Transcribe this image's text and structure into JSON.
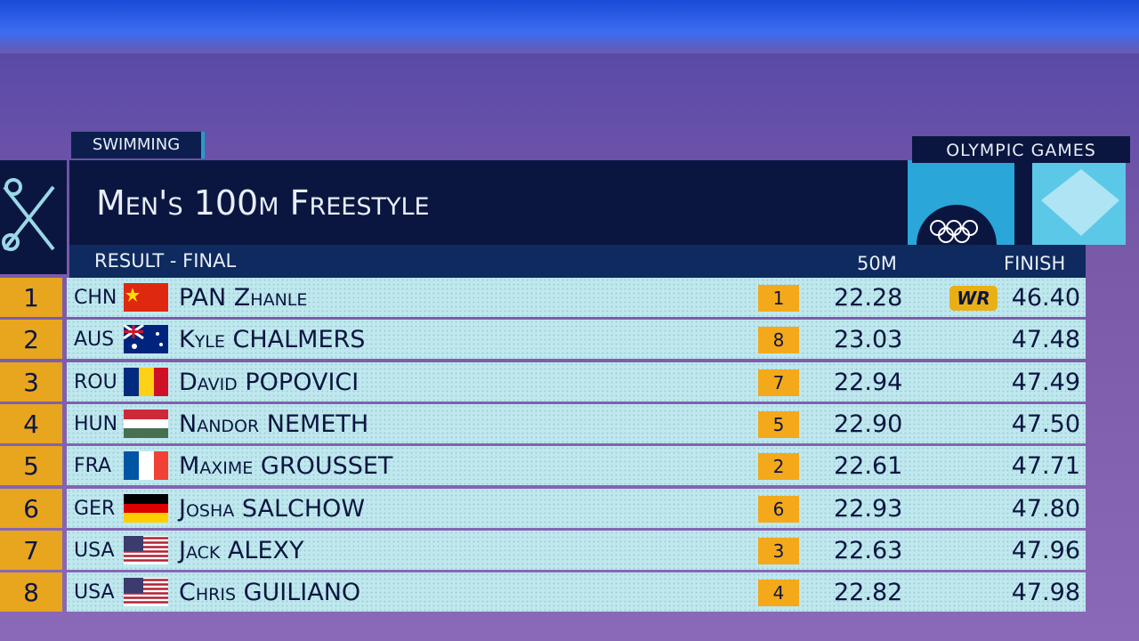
{
  "header": {
    "sport": "SWIMMING",
    "event": "Men's 100m Freestyle",
    "brand": "OLYMPIC GAMES",
    "phase": "RESULT - FINAL",
    "col_split": "50M",
    "col_finish": "FINISH"
  },
  "table": {
    "rows": [
      {
        "rank": "1",
        "country": "CHN",
        "name": "PAN Zhanle",
        "split_rank": "1",
        "split": "22.28",
        "record": "WR",
        "finish": "46.40"
      },
      {
        "rank": "2",
        "country": "AUS",
        "name": "Kyle CHALMERS",
        "split_rank": "8",
        "split": "23.03",
        "finish": "47.48"
      },
      {
        "rank": "3",
        "country": "ROU",
        "name": "David POPOVICI",
        "split_rank": "7",
        "split": "22.94",
        "finish": "47.49"
      },
      {
        "rank": "4",
        "country": "HUN",
        "name": "Nandor NEMETH",
        "split_rank": "5",
        "split": "22.90",
        "finish": "47.50"
      },
      {
        "rank": "5",
        "country": "FRA",
        "name": "Maxime GROUSSET",
        "split_rank": "2",
        "split": "22.61",
        "finish": "47.71"
      },
      {
        "rank": "6",
        "country": "GER",
        "name": "Josha SALCHOW",
        "split_rank": "6",
        "split": "22.93",
        "finish": "47.80"
      },
      {
        "rank": "7",
        "country": "USA",
        "name": "Jack ALEXY",
        "split_rank": "3",
        "split": "22.63",
        "finish": "47.96"
      },
      {
        "rank": "8",
        "country": "USA",
        "name": "Chris GUILIANO",
        "split_rank": "4",
        "split": "22.82",
        "finish": "47.98"
      }
    ]
  }
}
